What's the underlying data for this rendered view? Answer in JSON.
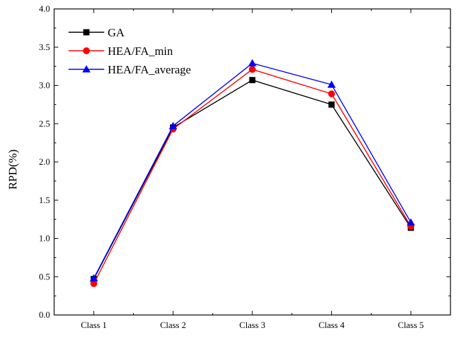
{
  "chart_data": {
    "type": "line",
    "categories": [
      "Class 1",
      "Class 2",
      "Class 3",
      "Class 4",
      "Class 5"
    ],
    "series": [
      {
        "name": "GA",
        "values": [
          0.47,
          2.45,
          3.07,
          2.75,
          1.14
        ],
        "color": "#000000",
        "marker": "square"
      },
      {
        "name": "HEA/FA_min",
        "values": [
          0.41,
          2.43,
          3.21,
          2.89,
          1.16
        ],
        "color": "#ff0000",
        "marker": "circle"
      },
      {
        "name": "HEA/FA_average",
        "values": [
          0.48,
          2.47,
          3.29,
          3.01,
          1.21
        ],
        "color": "#0000ff",
        "marker": "triangle"
      }
    ],
    "ylabel": "RPD(%)",
    "xlabel": "",
    "ylim": [
      0.0,
      4.0
    ],
    "yticks": [
      "0.0",
      "0.5",
      "1.0",
      "1.5",
      "2.0",
      "2.5",
      "3.0",
      "3.5",
      "4.0"
    ],
    "legend_position": "top-left",
    "grid": false
  }
}
